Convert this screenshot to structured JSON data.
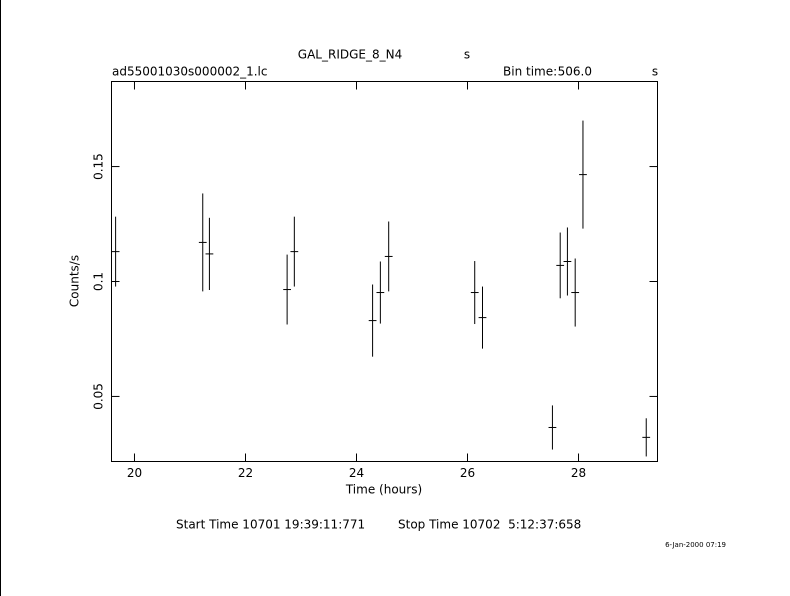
{
  "chart_data": {
    "type": "errorbar",
    "title": "GAL_RIDGE_8_N4",
    "title_unit": "s",
    "file": "ad55001030s000002_1.lc",
    "bin_time_label": "Bin time:",
    "bin_time": "506.0",
    "bin_time_unit": "s",
    "x_label": "Time (hours)",
    "y_label": "Counts/s",
    "start_time": "Start Time 10701 19:39:11:771",
    "stop_time": "Stop Time 10702  5:12:37:658",
    "date": "6-Jan-2000 07:19",
    "xlim": [
      19.586,
      29.423
    ],
    "xticks": [
      20,
      22,
      24,
      26,
      28
    ],
    "ylim": [
      0.0217,
      0.187
    ],
    "yticks": [
      0.05,
      0.1,
      0.15
    ],
    "color": "#000000",
    "xerr": 0.07,
    "series": [
      {
        "x": [
          19.66,
          21.23,
          21.35,
          22.75,
          22.88,
          24.29,
          24.43,
          24.58,
          26.13,
          26.27,
          27.53,
          27.67,
          27.8,
          27.94,
          28.08,
          29.22
        ],
        "values": [
          0.113,
          0.117,
          0.112,
          0.0965,
          0.113,
          0.083,
          0.0952,
          0.1109,
          0.0952,
          0.0843,
          0.0365,
          0.107,
          0.1087,
          0.0952,
          0.1465,
          0.0322
        ],
        "errors": [
          0.0152,
          0.0213,
          0.0157,
          0.0152,
          0.0152,
          0.0157,
          0.0135,
          0.0152,
          0.0137,
          0.0135,
          0.0096,
          0.0143,
          0.0148,
          0.0148,
          0.0235,
          0.0083
        ]
      }
    ]
  }
}
